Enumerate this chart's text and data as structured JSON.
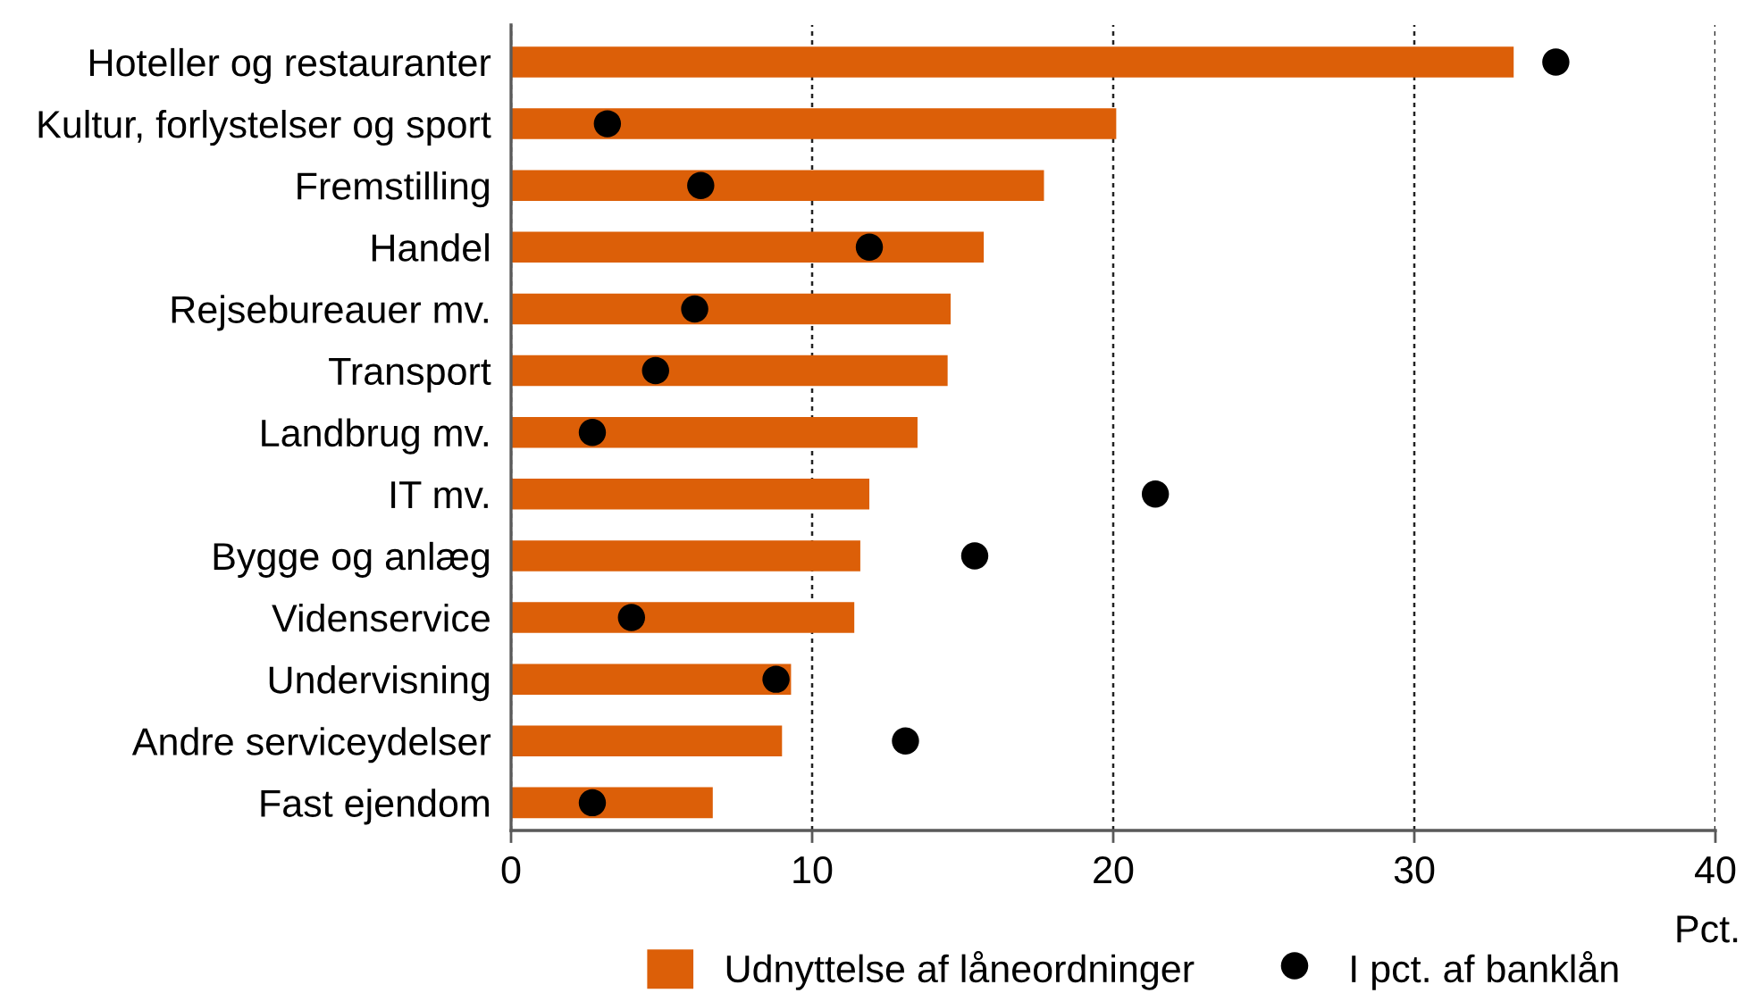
{
  "chart_data": {
    "type": "bar",
    "orientation": "horizontal",
    "categories": [
      "Hoteller og restauranter",
      "Kultur, forlystelser og sport",
      "Fremstilling",
      "Handel",
      "Rejsebureauer mv.",
      "Transport",
      "Landbrug mv.",
      "IT mv.",
      "Bygge og anlæg",
      "Videnservice",
      "Undervisning",
      "Andre serviceydelser",
      "Fast ejendom"
    ],
    "series": [
      {
        "name": "Udnyttelse af låneordninger",
        "color": "#dc5f08",
        "values": [
          33.3,
          20.1,
          17.7,
          15.7,
          14.6,
          14.5,
          13.5,
          11.9,
          11.6,
          11.4,
          9.3,
          9.0,
          6.7
        ]
      },
      {
        "name": "I pct. af banklån",
        "type": "scatter",
        "color": "#000000",
        "values": [
          34.7,
          3.2,
          6.3,
          11.9,
          6.1,
          4.8,
          2.7,
          21.4,
          15.4,
          4.0,
          8.8,
          13.1,
          2.7
        ]
      }
    ],
    "marker": "circle",
    "xlim": [
      0,
      40
    ],
    "xticks": [
      0,
      10,
      20,
      30,
      40
    ],
    "xlabel": "Pct.",
    "grid": "x",
    "legend": "bottom"
  }
}
